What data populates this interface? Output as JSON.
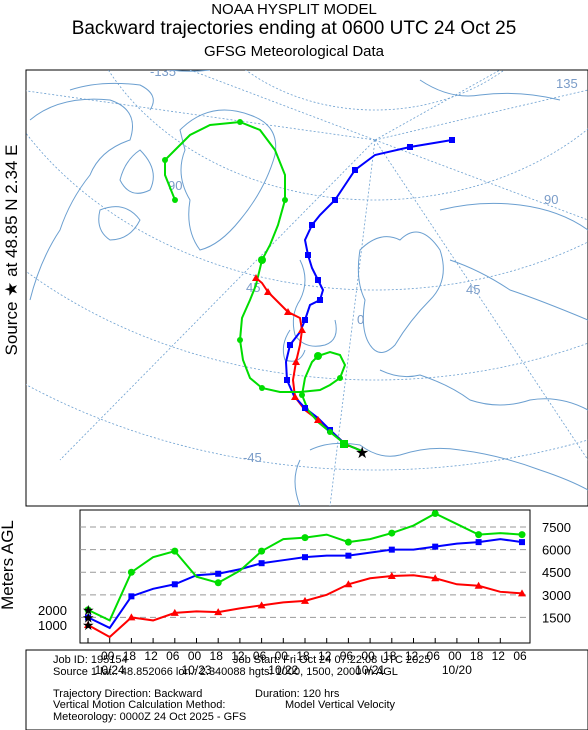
{
  "header": {
    "line1": "NOAA HYSPLIT MODEL",
    "line2": "Backward trajectories ending at 0600 UTC 24 Oct 25",
    "line3": "GFSG Meteorological Data"
  },
  "side_label": "Source ★ at  48.85 N   2.34 E",
  "height_label": "Meters AGL",
  "map": {
    "grid_labels": [
      "-135",
      "135",
      "90",
      "90",
      "45",
      "0",
      "-45",
      "45"
    ],
    "colors": {
      "land_outline": "#6b9fd0",
      "grid": "#6b9fd0",
      "grid_label": "#7a9cc8"
    }
  },
  "chart_data": {
    "type": "line",
    "title": "",
    "ylabel": "Meters AGL",
    "ylim": [
      0,
      8500
    ],
    "y_ticks_right": [
      1500,
      3000,
      4500,
      6000,
      7500
    ],
    "y_ticks_left": [
      1000,
      2000
    ],
    "x_tick_labels": [
      "00",
      "18",
      "12",
      "06",
      "00",
      "18",
      "12",
      "06",
      "00",
      "18",
      "12",
      "06",
      "00",
      "18",
      "12",
      "06",
      "00",
      "18",
      "12",
      "06"
    ],
    "x_date_labels": [
      "10/24",
      "10/23",
      "10/22",
      "10/21",
      "10/20"
    ],
    "hours_back": 120,
    "series": [
      {
        "color": "#ff0000",
        "marker": "triangle",
        "start_height": 1000,
        "hours": [
          0,
          6,
          12,
          18,
          24,
          30,
          36,
          42,
          48,
          54,
          60,
          66,
          72,
          78,
          84,
          90,
          96,
          102,
          108,
          114,
          120
        ],
        "values": [
          1000,
          200,
          1500,
          1300,
          1800,
          1900,
          1850,
          2100,
          2300,
          2500,
          2600,
          3000,
          3700,
          4100,
          4250,
          4300,
          4100,
          3700,
          3600,
          3200,
          3100
        ]
      },
      {
        "color": "#0000ff",
        "marker": "square",
        "start_height": 1500,
        "hours": [
          0,
          6,
          12,
          18,
          24,
          30,
          36,
          42,
          48,
          54,
          60,
          66,
          72,
          78,
          84,
          90,
          96,
          102,
          108,
          114,
          120
        ],
        "values": [
          1500,
          800,
          2900,
          3400,
          3700,
          4300,
          4400,
          4700,
          5100,
          5300,
          5500,
          5600,
          5600,
          5800,
          6000,
          6000,
          6200,
          6400,
          6500,
          6700,
          6500
        ]
      },
      {
        "color": "#00dd00",
        "marker": "circle",
        "start_height": 2000,
        "hours": [
          0,
          6,
          12,
          18,
          24,
          30,
          36,
          42,
          48,
          54,
          60,
          66,
          72,
          78,
          84,
          90,
          96,
          102,
          108,
          114,
          120
        ],
        "values": [
          2000,
          1300,
          4500,
          5500,
          5900,
          4200,
          3800,
          4600,
          5900,
          6700,
          6800,
          7000,
          6500,
          6700,
          7100,
          7600,
          8400,
          7700,
          7000,
          7100,
          7000
        ]
      }
    ]
  },
  "footer": {
    "job_id": "Job ID: 195154",
    "job_start": "Job Start: Fri Oct 24 07:22:08 UTC 2025",
    "source": "Source 1 lat.: 48.852066  lon.: 2.340088  hgts: 1000, 1500, 2000 m AGL",
    "direction": "Trajectory Direction: Backward",
    "duration": "Duration: 120 hrs",
    "vertical_label": "Vertical Motion Calculation Method:",
    "vertical_value": "Model Vertical Velocity",
    "meteorology": "Meteorology: 0000Z 24 Oct 2025 - GFS"
  }
}
